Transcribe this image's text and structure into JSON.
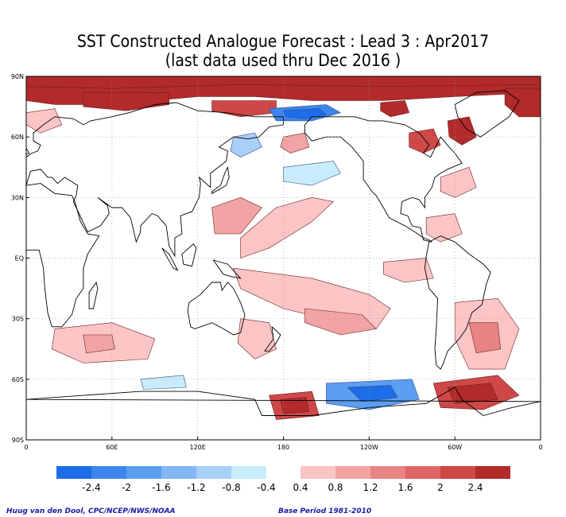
{
  "title": {
    "line1": "SST Constructed Analogue Forecast : Lead 3 : Apr2017",
    "line2": "(last data used thru Dec 2016 )"
  },
  "map": {
    "projection": "equirectangular, 0 to 360 longitude",
    "lat_labels": [
      "90N",
      "60N",
      "30N",
      "EQ",
      "30S",
      "60S",
      "90S"
    ],
    "lon_labels": [
      "0",
      "60E",
      "120E",
      "180",
      "120W",
      "60W",
      "0"
    ],
    "grid_style": "dotted",
    "anomalies": [
      {
        "region": "Arctic",
        "lon": 60,
        "lat": 82,
        "sign": "warm",
        "value": 2.4
      },
      {
        "region": "Arctic",
        "lon": 135,
        "lat": 72,
        "sign": "warm",
        "value": 2.4
      },
      {
        "region": "Arctic",
        "lon": 190,
        "lat": 72,
        "sign": "cool",
        "value": -2.0
      },
      {
        "region": "Arctic",
        "lon": 260,
        "lat": 75,
        "sign": "warm",
        "value": 2.0
      },
      {
        "region": "Labrador Sea",
        "lon": 305,
        "lat": 63,
        "sign": "warm",
        "value": 2.4
      },
      {
        "region": "Greenland/Arctic",
        "lon": 345,
        "lat": 78,
        "sign": "warm",
        "value": 2.4
      },
      {
        "region": "North Pacific",
        "lon": 200,
        "lat": 42,
        "sign": "cool",
        "value": -0.8
      },
      {
        "region": "West Pacific",
        "lon": 160,
        "lat": 20,
        "sign": "warm",
        "value": 0.8
      },
      {
        "region": "South Pacific",
        "lon": 220,
        "lat": -25,
        "sign": "warm",
        "value": 0.8
      },
      {
        "region": "South Atlantic",
        "lon": 325,
        "lat": -40,
        "sign": "warm",
        "value": 1.2
      },
      {
        "region": "Indian Ocean",
        "lon": 60,
        "lat": -45,
        "sign": "warm",
        "value": 0.8
      },
      {
        "region": "Ross Sea",
        "lon": 185,
        "lat": -73,
        "sign": "warm",
        "value": 2.4
      },
      {
        "region": "Amundsen Sea",
        "lon": 230,
        "lat": -68,
        "sign": "cool",
        "value": -1.6
      },
      {
        "region": "Weddell Sea",
        "lon": 315,
        "lat": -70,
        "sign": "warm",
        "value": 2.4
      }
    ]
  },
  "colorbar": {
    "cool_labels": [
      "-2.4",
      "-2",
      "-1.6",
      "-1.2",
      "-0.8",
      "-0.4"
    ],
    "warm_labels": [
      "0.4",
      "0.8",
      "1.2",
      "1.6",
      "2",
      "2.4"
    ],
    "cool_colors": [
      "#1e6de8",
      "#3c86ec",
      "#5c9ef0",
      "#82b7f4",
      "#a9d0f8",
      "#c8ecfb"
    ],
    "warm_colors": [
      "#fbc5c5",
      "#f2a3a3",
      "#e88484",
      "#df6666",
      "#cf4848",
      "#b22a2a"
    ]
  },
  "footer": {
    "credit": "Huug van den Dool, CPC/NCEP/NWS/NOAA",
    "base_period": "Base Period 1981-2010"
  }
}
